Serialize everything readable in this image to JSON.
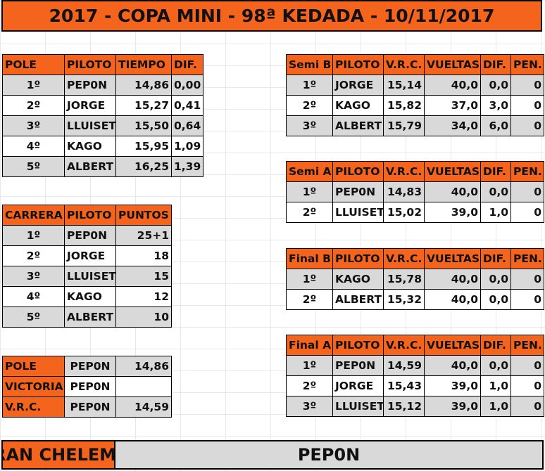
{
  "title": "2017 - COPA MINI - 98ª KEDADA - 10/11/2017",
  "pole": {
    "headers": [
      "POLE",
      "PILOTO",
      "TIEMPO",
      "DIF."
    ],
    "rows": [
      {
        "pos": "1º",
        "piloto": "PEP0N",
        "tiempo": "14,86",
        "dif": "0,00"
      },
      {
        "pos": "2º",
        "piloto": "JORGE",
        "tiempo": "15,27",
        "dif": "0,41"
      },
      {
        "pos": "3º",
        "piloto": "LLUISET",
        "tiempo": "15,50",
        "dif": "0,64"
      },
      {
        "pos": "4º",
        "piloto": "KAGO",
        "tiempo": "15,95",
        "dif": "1,09"
      },
      {
        "pos": "5º",
        "piloto": "ALBERT",
        "tiempo": "16,25",
        "dif": "1,39"
      }
    ]
  },
  "carrera": {
    "headers": [
      "CARRERA",
      "PILOTO",
      "PUNTOS"
    ],
    "rows": [
      {
        "pos": "1º",
        "piloto": "PEP0N",
        "puntos": "25+1"
      },
      {
        "pos": "2º",
        "piloto": "JORGE",
        "puntos": "18"
      },
      {
        "pos": "3º",
        "piloto": "LLUISET",
        "puntos": "15"
      },
      {
        "pos": "4º",
        "piloto": "KAGO",
        "puntos": "12"
      },
      {
        "pos": "5º",
        "piloto": "ALBERT",
        "puntos": "10"
      }
    ]
  },
  "resumen": {
    "rows": [
      {
        "label": "POLE",
        "piloto": "PEP0N",
        "valor": "14,86"
      },
      {
        "label": "VICTORIA",
        "piloto": "PEP0N",
        "valor": ""
      },
      {
        "label": "V.R.C.",
        "piloto": "PEP0N",
        "valor": "14,59"
      }
    ]
  },
  "semi_b": {
    "headers": [
      "Semi B",
      "PILOTO",
      "V.R.C.",
      "VUELTAS",
      "DIF.",
      "PEN."
    ],
    "rows": [
      {
        "pos": "1º",
        "piloto": "JORGE",
        "vrc": "15,14",
        "vueltas": "40,0",
        "dif": "0,0",
        "pen": "0"
      },
      {
        "pos": "2º",
        "piloto": "KAGO",
        "vrc": "15,82",
        "vueltas": "37,0",
        "dif": "3,0",
        "pen": "0"
      },
      {
        "pos": "3º",
        "piloto": "ALBERT",
        "vrc": "15,79",
        "vueltas": "34,0",
        "dif": "6,0",
        "pen": "0"
      }
    ]
  },
  "semi_a": {
    "headers": [
      "Semi A",
      "PILOTO",
      "V.R.C.",
      "VUELTAS",
      "DIF.",
      "PEN."
    ],
    "rows": [
      {
        "pos": "1º",
        "piloto": "PEP0N",
        "vrc": "14,83",
        "vueltas": "40,0",
        "dif": "0,0",
        "pen": "0"
      },
      {
        "pos": "2º",
        "piloto": "LLUISET",
        "vrc": "15,02",
        "vueltas": "39,0",
        "dif": "1,0",
        "pen": "0"
      }
    ]
  },
  "final_b": {
    "headers": [
      "Final B",
      "PILOTO",
      "V.R.C.",
      "VUELTAS",
      "DIF.",
      "PEN."
    ],
    "rows": [
      {
        "pos": "1º",
        "piloto": "KAGO",
        "vrc": "15,78",
        "vueltas": "40,0",
        "dif": "0,0",
        "pen": "0"
      },
      {
        "pos": "2º",
        "piloto": "ALBERT",
        "vrc": "15,32",
        "vueltas": "40,0",
        "dif": "0,0",
        "pen": "0"
      }
    ]
  },
  "final_a": {
    "headers": [
      "Final A",
      "PILOTO",
      "V.R.C.",
      "VUELTAS",
      "DIF.",
      "PEN."
    ],
    "rows": [
      {
        "pos": "1º",
        "piloto": "PEP0N",
        "vrc": "14,59",
        "vueltas": "40,0",
        "dif": "0,0",
        "pen": "0"
      },
      {
        "pos": "2º",
        "piloto": "JORGE",
        "vrc": "15,43",
        "vueltas": "39,0",
        "dif": "1,0",
        "pen": "0"
      },
      {
        "pos": "3º",
        "piloto": "LLUISET",
        "vrc": "15,12",
        "vueltas": "39,0",
        "dif": "1,0",
        "pen": "0"
      }
    ]
  },
  "chelem": {
    "label": "RAN CHELEM",
    "winner": "PEP0N"
  }
}
